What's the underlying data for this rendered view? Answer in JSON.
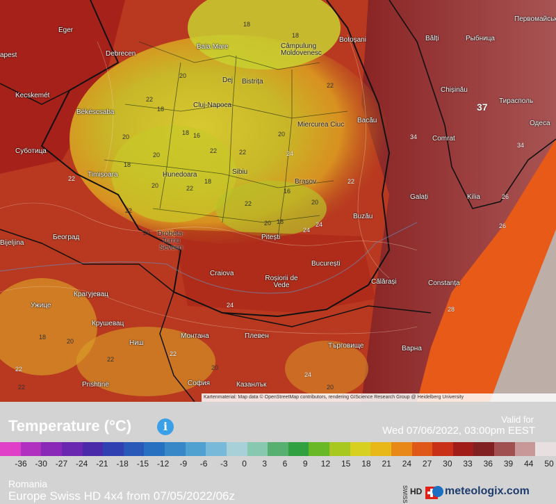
{
  "map": {
    "attribution": "Kartenmaterial: Map data © OpenStreetMap contributors, rendering GIScience Research Group @ Heidelberg University",
    "cities": [
      {
        "name": "Eger"
      },
      {
        "name": "Debrecen"
      },
      {
        "name": "Baia Mare"
      },
      {
        "name": "Câmpulung Moldovenesc"
      },
      {
        "name": "Botoșani"
      },
      {
        "name": "Bălți"
      },
      {
        "name": "Рыбница"
      },
      {
        "name": "Первомайськ"
      },
      {
        "name": "Kecskemét"
      },
      {
        "name": "Békéscsaba"
      },
      {
        "name": "Dej"
      },
      {
        "name": "Bistrița"
      },
      {
        "name": "Cluj-Napoca"
      },
      {
        "name": "Chișinău"
      },
      {
        "name": "Тирасполь"
      },
      {
        "name": "Bacău"
      },
      {
        "name": "Miercurea Ciuc"
      },
      {
        "name": "Comrat"
      },
      {
        "name": "Одеса"
      },
      {
        "name": "Суботица"
      },
      {
        "name": "Timișoara"
      },
      {
        "name": "Hunedoara"
      },
      {
        "name": "Sibiu"
      },
      {
        "name": "Brașov"
      },
      {
        "name": "Galați"
      },
      {
        "name": "Kilia"
      },
      {
        "name": "Buzău"
      },
      {
        "name": "Bijeljina"
      },
      {
        "name": "Београд"
      },
      {
        "name": "Drobeta-Turnu Severin"
      },
      {
        "name": "Pitești"
      },
      {
        "name": "București"
      },
      {
        "name": "Craiova"
      },
      {
        "name": "Roșiorii de Vede"
      },
      {
        "name": "Călărași"
      },
      {
        "name": "Constanța"
      },
      {
        "name": "Ужице"
      },
      {
        "name": "Крагујевац"
      },
      {
        "name": "Крушевац"
      },
      {
        "name": "Ниш"
      },
      {
        "name": "Монтана"
      },
      {
        "name": "Плевен"
      },
      {
        "name": "Търговище"
      },
      {
        "name": "Варна"
      },
      {
        "name": "Prishtinë"
      },
      {
        "name": "София"
      },
      {
        "name": "Казанлък"
      },
      {
        "name": "apest"
      }
    ],
    "temps": [
      "18",
      "18",
      "20",
      "22",
      "18",
      "22",
      "20",
      "18",
      "16",
      "18",
      "20",
      "22",
      "22",
      "20",
      "22",
      "18",
      "22",
      "22",
      "16",
      "20",
      "18",
      "20",
      "24",
      "22",
      "20",
      "22",
      "24",
      "37",
      "34",
      "34",
      "26",
      "20",
      "18",
      "20",
      "24",
      "22",
      "22",
      "24",
      "28",
      "20",
      "22",
      "26",
      "22",
      "20",
      "24"
    ]
  },
  "legend": {
    "title": "Temperature (°C)",
    "info_icon": "i",
    "valid_for": "Valid for",
    "valid_time": "Wed 07/06/2022, 03:00pm EEST",
    "ticks": [
      "-36",
      "-30",
      "-27",
      "-24",
      "-21",
      "-18",
      "-15",
      "-12",
      "-9",
      "-6",
      "-3",
      "0",
      "3",
      "6",
      "9",
      "12",
      "15",
      "18",
      "21",
      "24",
      "27",
      "30",
      "33",
      "36",
      "39",
      "44",
      "50"
    ],
    "colors": [
      "#e040c8",
      "#b030c0",
      "#8a28b8",
      "#6a28b0",
      "#4a2aa8",
      "#3040b0",
      "#2858b8",
      "#2870c0",
      "#3888c8",
      "#50a0d0",
      "#78b8d8",
      "#a8d0d8",
      "#88c8b0",
      "#58b070",
      "#30a040",
      "#68b828",
      "#a8c820",
      "#d8d020",
      "#e8b818",
      "#e88818",
      "#e05818",
      "#c83018",
      "#a01c18",
      "#802020",
      "#a05050",
      "#c89898",
      "#e8e0e0"
    ],
    "region": "Romania",
    "model": "Europe Swiss HD 4x4 from 07/05/2022/06z",
    "brand": "meteologix.com",
    "hd_label": "HD",
    "swiss_label": "SWISS"
  }
}
